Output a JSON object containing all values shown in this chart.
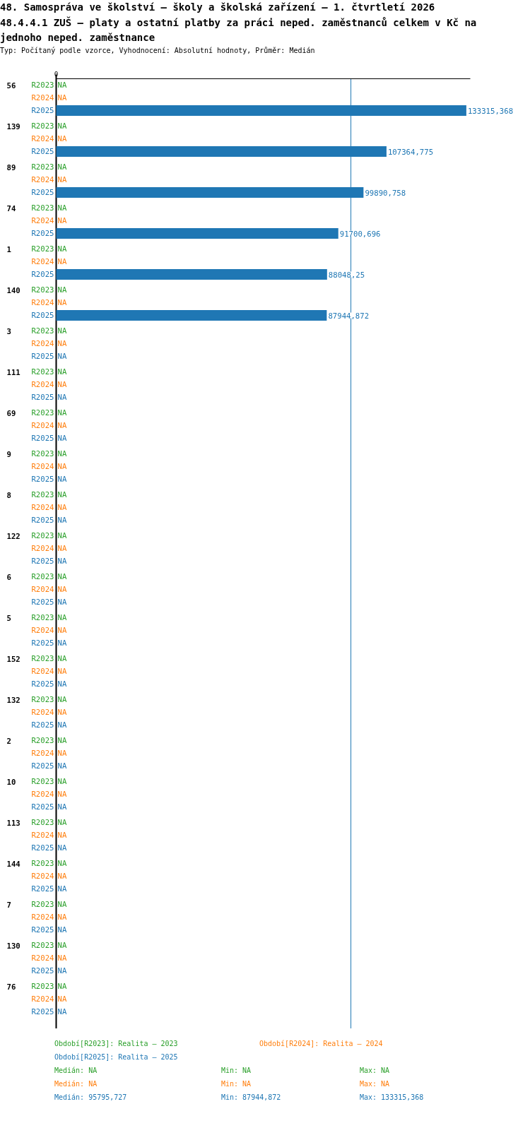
{
  "chart_data": {
    "type": "bar",
    "orientation": "horizontal",
    "title": "48. Samospráva ve školství – školy a školská zařízení – 1. čtvrtletí 2026",
    "subtitle": "48.4.4.1 ZUŠ – platy a ostatní platby za práci neped. zaměstnanců celkem v Kč na jednoho neped. zaměstnance",
    "categories": [
      "56",
      "139",
      "89",
      "74",
      "1",
      "140",
      "3",
      "111",
      "69",
      "9",
      "8",
      "122",
      "6",
      "5",
      "152",
      "132",
      "2",
      "10",
      "113",
      "144",
      "7",
      "130",
      "76"
    ],
    "series": [
      {
        "name": "R2023",
        "color": "#2ca02c",
        "values": [
          null,
          null,
          null,
          null,
          null,
          null,
          null,
          null,
          null,
          null,
          null,
          null,
          null,
          null,
          null,
          null,
          null,
          null,
          null,
          null,
          null,
          null,
          null
        ],
        "value_labels": [
          "NA",
          "NA",
          "NA",
          "NA",
          "NA",
          "NA",
          "NA",
          "NA",
          "NA",
          "NA",
          "NA",
          "NA",
          "NA",
          "NA",
          "NA",
          "NA",
          "NA",
          "NA",
          "NA",
          "NA",
          "NA",
          "NA",
          "NA"
        ]
      },
      {
        "name": "R2024",
        "color": "#ff7f0e",
        "values": [
          null,
          null,
          null,
          null,
          null,
          null,
          null,
          null,
          null,
          null,
          null,
          null,
          null,
          null,
          null,
          null,
          null,
          null,
          null,
          null,
          null,
          null,
          null
        ],
        "value_labels": [
          "NA",
          "NA",
          "NA",
          "NA",
          "NA",
          "NA",
          "NA",
          "NA",
          "NA",
          "NA",
          "NA",
          "NA",
          "NA",
          "NA",
          "NA",
          "NA",
          "NA",
          "NA",
          "NA",
          "NA",
          "NA",
          "NA",
          "NA"
        ]
      },
      {
        "name": "R2025",
        "color": "#1f77b4",
        "values": [
          133315.368,
          107364.775,
          99890.758,
          91700.696,
          88048.25,
          87944.872,
          null,
          null,
          null,
          null,
          null,
          null,
          null,
          null,
          null,
          null,
          null,
          null,
          null,
          null,
          null,
          null,
          null
        ],
        "value_labels": [
          "133315,368",
          "107364,775",
          "99890,758",
          "91700,696",
          "88048,25",
          "87944,872",
          "NA",
          "NA",
          "NA",
          "NA",
          "NA",
          "NA",
          "NA",
          "NA",
          "NA",
          "NA",
          "NA",
          "NA",
          "NA",
          "NA",
          "NA",
          "NA",
          "NA"
        ]
      }
    ],
    "xlim": [
      0,
      134600
    ],
    "ref_lines": [
      {
        "axis": "x",
        "value": 95795.727,
        "label": null,
        "color": "#1f77b4"
      }
    ],
    "annotations": [
      "Typ: Počítaný podle vzorce, Vyhodnocení: Absolutní hodnoty, Průměr: Medián",
      "Období[R2023]: Realita – 2023",
      "Období[R2024]: Realita – 2024",
      "Období[R2025]: Realita – 2025",
      "Medián: NA",
      "Min: NA",
      "Max: NA",
      "Medián: NA",
      "Min: NA",
      "Max: NA",
      "Medián: 95795,727",
      "Min: 87944,872",
      "Max: 133315,368",
      "0"
    ]
  }
}
